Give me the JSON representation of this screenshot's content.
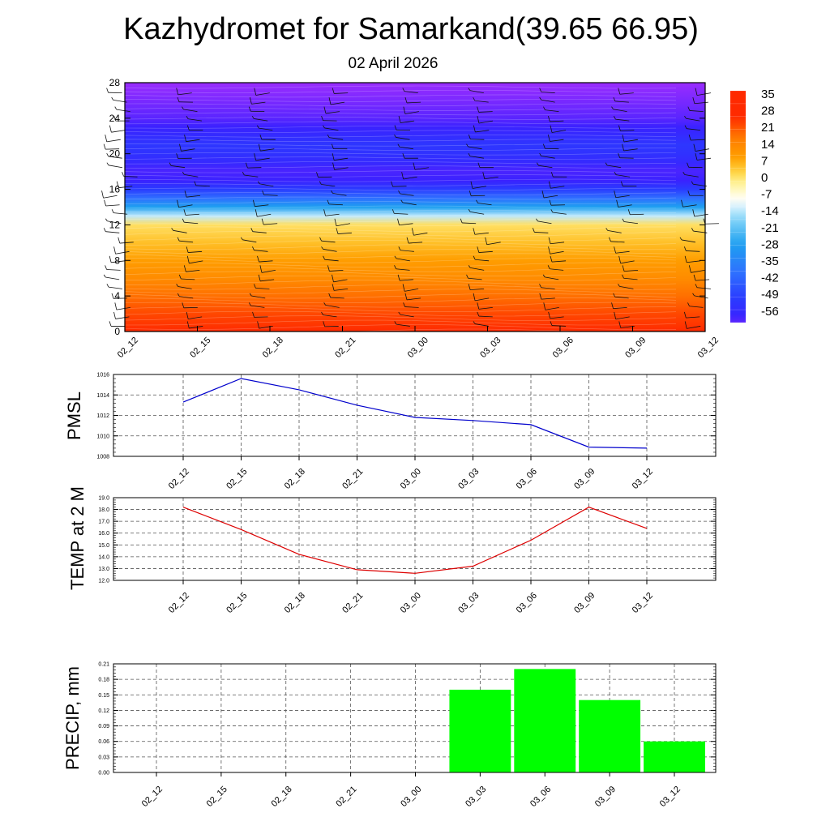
{
  "title": "Kazhydromet for Samarkand(39.65 66.95)",
  "subtitle": "02 April 2026",
  "chart_data": [
    {
      "type": "heatmap",
      "name": "vertical-temperature-section",
      "x_categories": [
        "02_12",
        "02_15",
        "02_18",
        "02_21",
        "03_00",
        "03_03",
        "03_06",
        "03_09",
        "03_12"
      ],
      "yticks": [
        0,
        4,
        8,
        12,
        16,
        20,
        24,
        28
      ],
      "ylim": [
        0,
        28
      ],
      "temperature_profile": {
        "levels": [
          0,
          2,
          4,
          6,
          8,
          10,
          12,
          13,
          14,
          15,
          16,
          17,
          18,
          19,
          20,
          21,
          22,
          23,
          24,
          26,
          28
        ],
        "temps": [
          24,
          21,
          17,
          12,
          8,
          4,
          0,
          -14,
          -28,
          -40,
          -50,
          -58,
          -59,
          -56,
          -53,
          -52,
          -55,
          -58,
          -60,
          -62,
          -64
        ]
      },
      "colorbar": {
        "labels": [
          "35",
          "28",
          "21",
          "14",
          "7",
          "0",
          "-7",
          "-14",
          "-21",
          "-28",
          "-35",
          "-42",
          "-49",
          "-56"
        ],
        "values": [
          35,
          28,
          21,
          14,
          7,
          0,
          -7,
          -14,
          -21,
          -28,
          -35,
          -42,
          -49,
          -56
        ],
        "colors": [
          "#ff2828",
          "#ff8c00",
          "#ffd700",
          "#ffffff",
          "#00b0f0",
          "#1e3cff",
          "#9933ff"
        ]
      }
    },
    {
      "type": "line",
      "name": "pmsl",
      "ylabel": "PMSL",
      "categories": [
        "02_12",
        "02_15",
        "02_18",
        "02_21",
        "03_00",
        "03_03",
        "03_06",
        "03_09",
        "03_12"
      ],
      "values": [
        1013.3,
        1015.6,
        1014.5,
        1013.0,
        1011.8,
        1011.5,
        1011.1,
        1008.9,
        1008.8
      ],
      "ylim": [
        1008,
        1016
      ],
      "yticks": [
        "1008",
        "1010",
        "1012",
        "1014",
        "1016"
      ],
      "ytick_values": [
        1008,
        1010,
        1012,
        1014,
        1016
      ],
      "color": "#0000cc"
    },
    {
      "type": "line",
      "name": "temp-2m",
      "ylabel": "TEMP at 2 M",
      "categories": [
        "02_12",
        "02_15",
        "02_18",
        "02_21",
        "03_00",
        "03_03",
        "03_06",
        "03_09",
        "03_12"
      ],
      "values": [
        18.2,
        16.3,
        14.2,
        12.9,
        12.6,
        13.2,
        15.4,
        18.2,
        16.4
      ],
      "ylim": [
        12,
        19
      ],
      "yticks": [
        "12.0",
        "13.0",
        "14.0",
        "15.0",
        "16.0",
        "17.0",
        "18.0",
        "19.0"
      ],
      "ytick_values": [
        12,
        13,
        14,
        15,
        16,
        17,
        18,
        19
      ],
      "color": "#dd0000"
    },
    {
      "type": "bar",
      "name": "precip",
      "ylabel": "PRECIP, mm",
      "categories": [
        "02_12",
        "02_15",
        "02_18",
        "02_21",
        "03_00",
        "03_03",
        "03_06",
        "03_09",
        "03_12"
      ],
      "values": [
        0,
        0,
        0,
        0,
        0,
        0.16,
        0.2,
        0.14,
        0.06
      ],
      "ylim": [
        0,
        0.21
      ],
      "yticks": [
        "0.00",
        "0.03",
        "0.06",
        "0.09",
        "0.12",
        "0.15",
        "0.18",
        "0.21"
      ],
      "ytick_values": [
        0,
        0.03,
        0.06,
        0.09,
        0.12,
        0.15,
        0.18,
        0.21
      ],
      "color": "#00ff00"
    }
  ]
}
